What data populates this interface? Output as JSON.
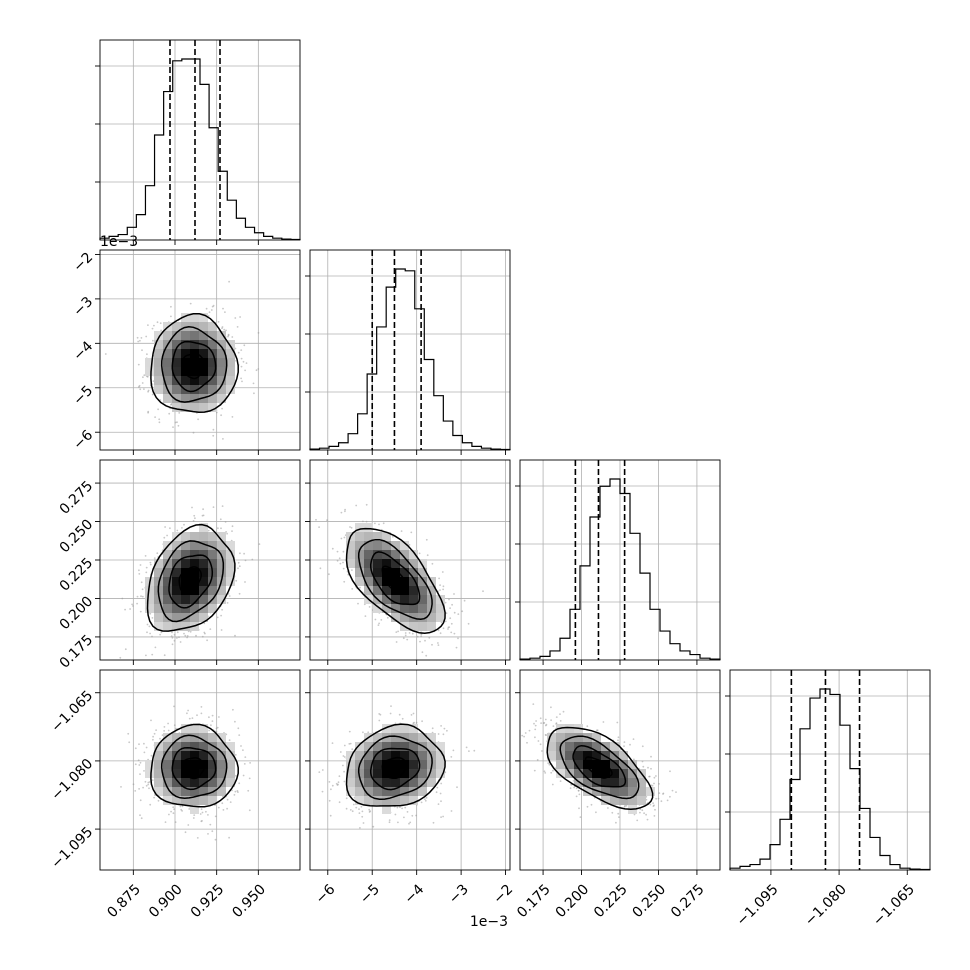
{
  "chart_data": {
    "type": "corner",
    "grid": true,
    "parameters": [
      {
        "range": [
          0.855,
          0.975
        ],
        "ticks": [
          0.875,
          0.9,
          0.925,
          0.95
        ],
        "tick_labels": [
          "0.875",
          "0.900",
          "0.925",
          "0.950"
        ],
        "offset_label": ""
      },
      {
        "range": [
          -6.4,
          -1.9
        ],
        "ticks": [
          -6,
          -5,
          -4,
          -3,
          -2
        ],
        "tick_labels": [
          "−6",
          "−5",
          "−4",
          "−3",
          "−2"
        ],
        "offset_label": "1e−3"
      },
      {
        "range": [
          0.16,
          0.29
        ],
        "ticks": [
          0.175,
          0.2,
          0.225,
          0.25,
          0.275
        ],
        "tick_labels": [
          "0.175",
          "0.200",
          "0.225",
          "0.250",
          "0.275"
        ],
        "offset_label": ""
      },
      {
        "range": [
          -1.104,
          -1.06
        ],
        "ticks": [
          -1.095,
          -1.08,
          -1.065
        ],
        "tick_labels": [
          "−1.095",
          "−1.080",
          "−1.065"
        ],
        "offset_label": ""
      }
    ],
    "histograms": [
      {
        "edges_range": [
          0.855,
          0.975
        ],
        "counts": [
          1,
          2,
          3,
          7,
          14,
          30,
          58,
          82,
          99,
          100,
          100,
          86,
          62,
          38,
          22,
          12,
          7,
          4,
          2,
          1,
          0.5,
          0.3
        ],
        "quantiles": [
          0.897,
          0.912,
          0.927
        ]
      },
      {
        "edges_range": [
          -6.4,
          -1.9
        ],
        "counts": [
          0.5,
          1,
          2,
          4,
          9,
          20,
          42,
          68,
          90,
          100,
          99,
          78,
          50,
          30,
          16,
          8,
          4,
          2,
          1,
          0.5,
          0.3
        ],
        "quantiles": [
          -5.0,
          -4.5,
          -3.9
        ]
      },
      {
        "edges_range": [
          0.16,
          0.29
        ],
        "counts": [
          0.5,
          1,
          2,
          5,
          12,
          28,
          52,
          79,
          96,
          100,
          92,
          70,
          48,
          28,
          16,
          9,
          5,
          3,
          1,
          0.5
        ],
        "quantiles": [
          0.196,
          0.211,
          0.228
        ]
      },
      {
        "edges_range": [
          -1.104,
          -1.06
        ],
        "counts": [
          1,
          2,
          3,
          6,
          14,
          28,
          50,
          78,
          95,
          100,
          97,
          80,
          56,
          34,
          18,
          8,
          3,
          1,
          0.5,
          0.3
        ],
        "quantiles": [
          -1.0905,
          -1.083,
          -1.0755
        ]
      }
    ],
    "pairs": [
      {
        "row": 1,
        "col": 0,
        "center": [
          0.911,
          -4.5
        ],
        "sigma": [
          0.013,
          0.55
        ],
        "corr": 0.0
      },
      {
        "row": 2,
        "col": 0,
        "center": [
          0.909,
          0.212
        ],
        "sigma": [
          0.013,
          0.017
        ],
        "corr": 0.3
      },
      {
        "row": 2,
        "col": 1,
        "center": [
          -4.5,
          0.212
        ],
        "sigma": [
          0.55,
          0.017
        ],
        "corr": -0.6
      },
      {
        "row": 3,
        "col": 0,
        "center": [
          0.911,
          -1.0815
        ],
        "sigma": [
          0.013,
          0.0045
        ],
        "corr": 0.0
      },
      {
        "row": 3,
        "col": 1,
        "center": [
          -4.5,
          -1.0815
        ],
        "sigma": [
          0.55,
          0.0045
        ],
        "corr": 0.15
      },
      {
        "row": 3,
        "col": 2,
        "center": [
          0.211,
          -1.0815
        ],
        "sigma": [
          0.017,
          0.0045
        ],
        "corr": -0.6
      }
    ],
    "contour_levels_sigma": [
      0.5,
      1.0,
      1.5,
      2.0
    ]
  }
}
